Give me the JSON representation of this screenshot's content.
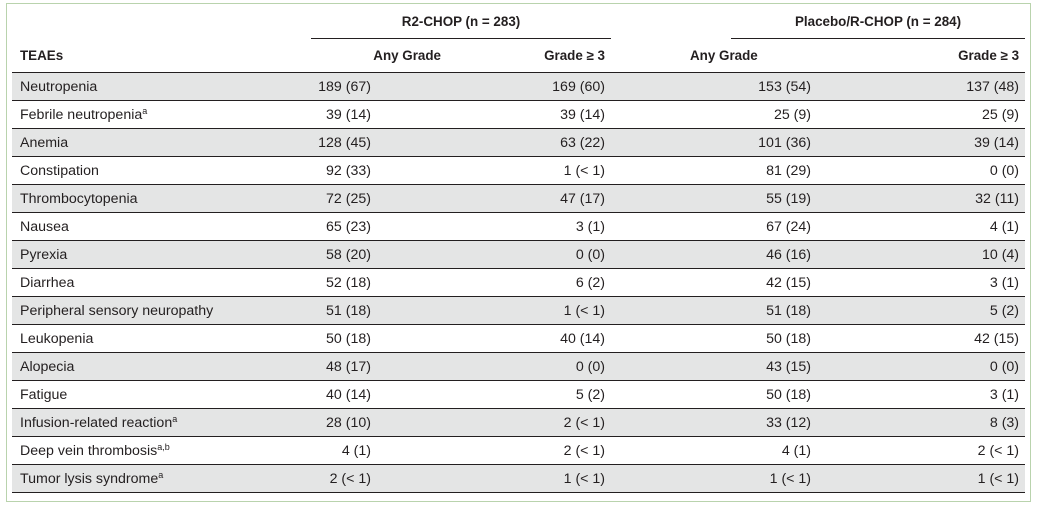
{
  "groups": {
    "r2chop": "R2-CHOP (n = 283)",
    "placebo": "Placebo/R-CHOP (n = 284)"
  },
  "columns": {
    "teaes": "TEAEs",
    "any_grade_1": "Any Grade",
    "grade3_1": "Grade ≥ 3",
    "any_grade_2": "Any Grade",
    "grade3_2": "Grade ≥ 3"
  },
  "rows": [
    {
      "name": "Neutropenia",
      "sup": "",
      "v": [
        "189 (67)",
        "169 (60)",
        "153 (54)",
        "137 (48)"
      ]
    },
    {
      "name": "Febrile neutropenia",
      "sup": "a",
      "v": [
        "39 (14)",
        "39 (14)",
        "25 (9)",
        "25 (9)"
      ]
    },
    {
      "name": "Anemia",
      "sup": "",
      "v": [
        "128 (45)",
        "63 (22)",
        "101 (36)",
        "39 (14)"
      ]
    },
    {
      "name": "Constipation",
      "sup": "",
      "v": [
        "92 (33)",
        "1 (< 1)",
        "81 (29)",
        "0 (0)"
      ]
    },
    {
      "name": "Thrombocytopenia",
      "sup": "",
      "v": [
        "72 (25)",
        "47 (17)",
        "55 (19)",
        "32 (11)"
      ]
    },
    {
      "name": "Nausea",
      "sup": "",
      "v": [
        "65 (23)",
        "3 (1)",
        "67 (24)",
        "4 (1)"
      ]
    },
    {
      "name": "Pyrexia",
      "sup": "",
      "v": [
        "58 (20)",
        "0 (0)",
        "46 (16)",
        "10 (4)"
      ]
    },
    {
      "name": "Diarrhea",
      "sup": "",
      "v": [
        "52 (18)",
        "6 (2)",
        "42 (15)",
        "3 (1)"
      ]
    },
    {
      "name": "Peripheral sensory neuropathy",
      "sup": "",
      "v": [
        "51 (18)",
        "1 (< 1)",
        "51 (18)",
        "5 (2)"
      ]
    },
    {
      "name": "Leukopenia",
      "sup": "",
      "v": [
        "50 (18)",
        "40 (14)",
        "50 (18)",
        "42 (15)"
      ]
    },
    {
      "name": "Alopecia",
      "sup": "",
      "v": [
        "48 (17)",
        "0 (0)",
        "43 (15)",
        "0 (0)"
      ]
    },
    {
      "name": "Fatigue",
      "sup": "",
      "v": [
        "40 (14)",
        "5 (2)",
        "50 (18)",
        "3 (1)"
      ]
    },
    {
      "name": "Infusion-related reaction",
      "sup": "a",
      "v": [
        "28 (10)",
        "2 (< 1)",
        "33 (12)",
        "8 (3)"
      ]
    },
    {
      "name": "Deep vein thrombosis",
      "sup": "a,b",
      "v": [
        "4 (1)",
        "2 (< 1)",
        "4 (1)",
        "2 (< 1)"
      ]
    },
    {
      "name": "Tumor lysis syndrome",
      "sup": "a",
      "v": [
        "2 (< 1)",
        "1 (< 1)",
        "1 (< 1)",
        "1 (< 1)"
      ]
    }
  ]
}
